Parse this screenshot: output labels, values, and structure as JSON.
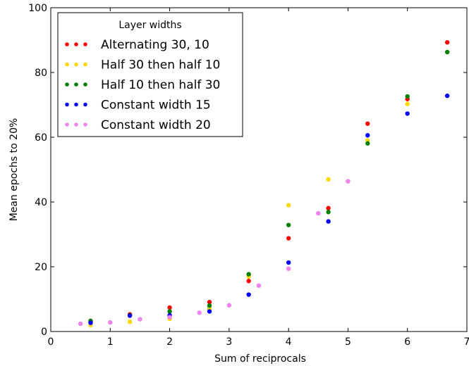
{
  "chart_data": {
    "type": "scatter",
    "xlabel": "Sum of reciprocals",
    "ylabel": "Mean epochs to 20%",
    "xlim": [
      0,
      7
    ],
    "ylim": [
      0,
      100
    ],
    "xticks": [
      0,
      1,
      2,
      3,
      4,
      5,
      6,
      7
    ],
    "yticks": [
      0,
      20,
      40,
      60,
      80,
      100
    ],
    "grid": false,
    "legend": {
      "title": "Layer widths",
      "placement": "top-left"
    },
    "series": [
      {
        "name": "Alternating 30, 10",
        "color": "#ff0000",
        "points": [
          [
            0.67,
            3.0
          ],
          [
            1.33,
            5.3
          ],
          [
            2.0,
            7.4
          ],
          [
            2.67,
            9.1
          ],
          [
            3.33,
            15.6
          ],
          [
            4.0,
            28.8
          ],
          [
            4.67,
            38.1
          ],
          [
            5.33,
            64.2
          ],
          [
            6.0,
            71.8
          ],
          [
            6.67,
            89.3
          ]
        ]
      },
      {
        "name": "Half 30 then half 10",
        "color": "#ffd700",
        "points": [
          [
            0.67,
            2.0
          ],
          [
            1.33,
            3.0
          ],
          [
            2.0,
            3.9
          ],
          [
            2.67,
            7.0
          ],
          [
            3.33,
            17.0
          ],
          [
            4.0,
            39.0
          ],
          [
            4.67,
            47.0
          ],
          [
            5.33,
            59.0
          ],
          [
            6.0,
            70.3
          ],
          [
            6.67,
            86.3
          ]
        ]
      },
      {
        "name": "Half 10 then half 30",
        "color": "#008000",
        "points": [
          [
            0.67,
            3.3
          ],
          [
            1.33,
            5.0
          ],
          [
            2.0,
            6.2
          ],
          [
            2.67,
            8.0
          ],
          [
            3.33,
            17.7
          ],
          [
            4.0,
            32.9
          ],
          [
            4.67,
            36.9
          ],
          [
            5.33,
            58.1
          ],
          [
            6.0,
            72.6
          ],
          [
            6.67,
            86.3
          ]
        ]
      },
      {
        "name": "Constant width 15",
        "color": "#0000ff",
        "points": [
          [
            0.67,
            2.7
          ],
          [
            1.33,
            4.9
          ],
          [
            2.0,
            5.0
          ],
          [
            2.67,
            6.2
          ],
          [
            3.33,
            11.4
          ],
          [
            4.0,
            21.3
          ],
          [
            4.67,
            34.0
          ],
          [
            5.33,
            60.6
          ],
          [
            6.0,
            67.3
          ],
          [
            6.67,
            72.8
          ]
        ]
      },
      {
        "name": "Constant width 20",
        "color": "#ee82ee",
        "points": [
          [
            0.5,
            2.4
          ],
          [
            1.0,
            2.8
          ],
          [
            1.5,
            3.8
          ],
          [
            2.0,
            4.4
          ],
          [
            2.5,
            5.8
          ],
          [
            3.0,
            8.1
          ],
          [
            3.5,
            14.2
          ],
          [
            4.0,
            19.4
          ],
          [
            4.5,
            36.5
          ],
          [
            5.0,
            46.4
          ]
        ]
      }
    ]
  }
}
